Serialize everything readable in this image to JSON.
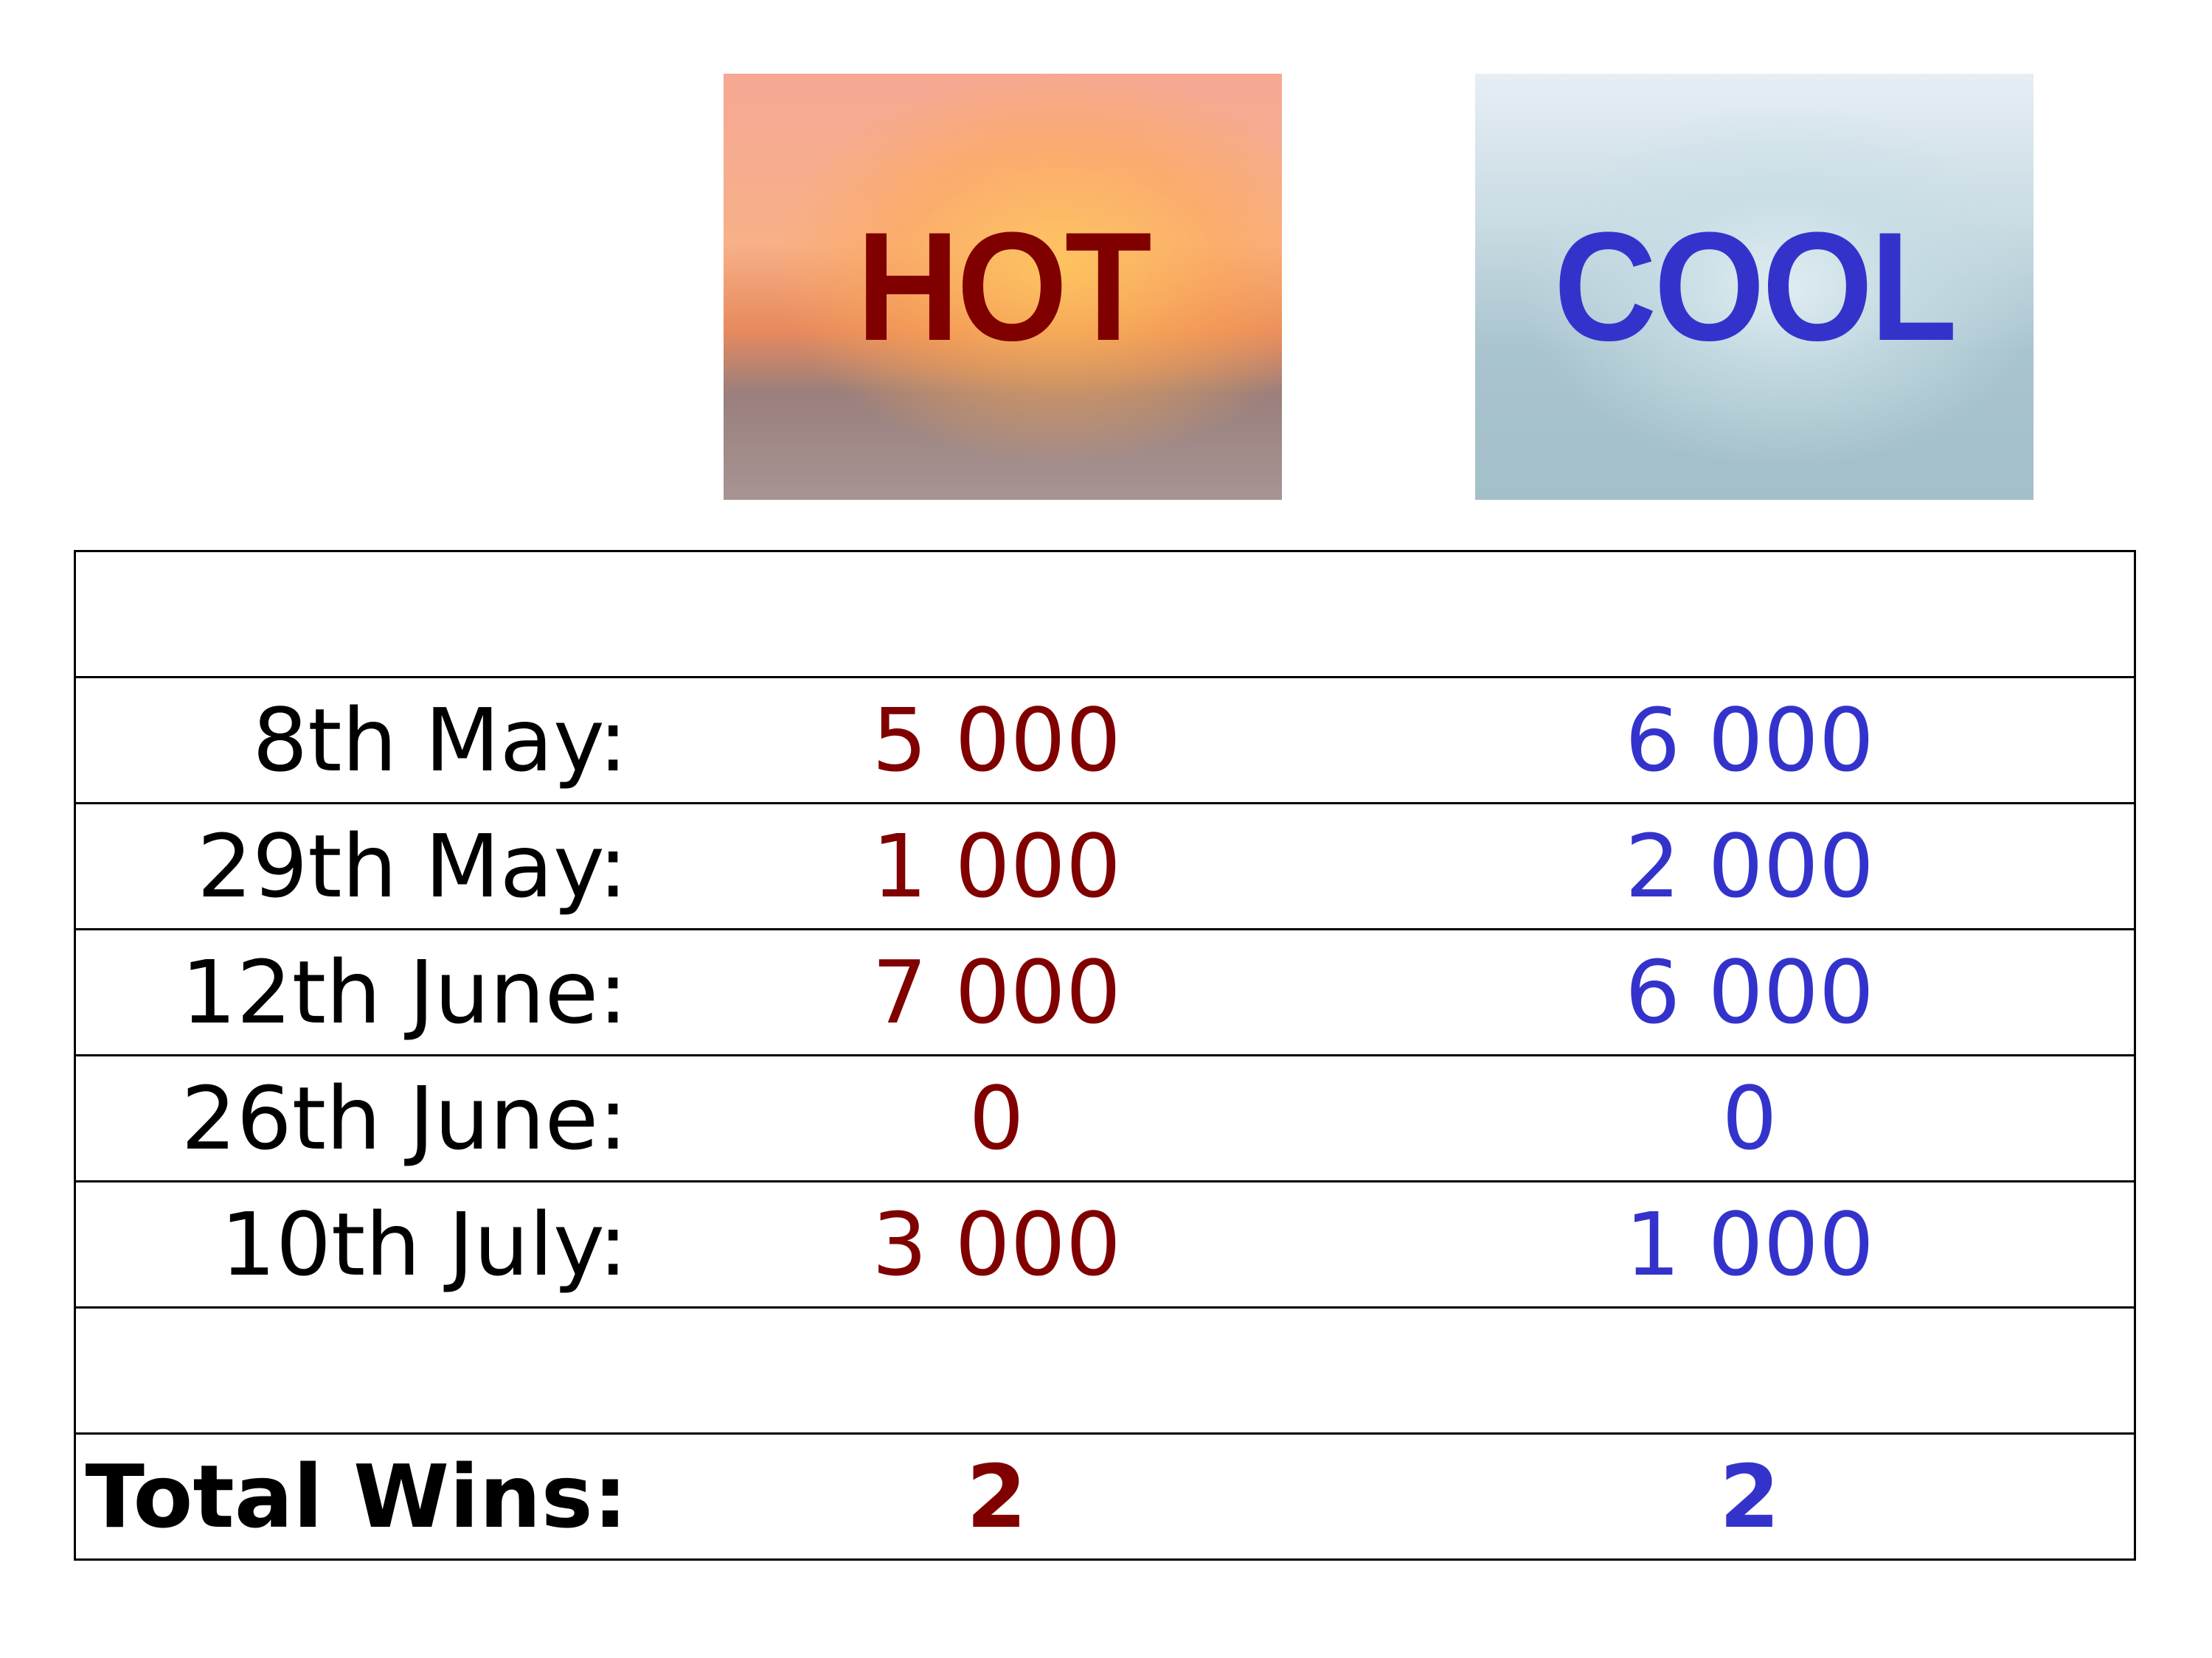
{
  "header": {
    "hot_label": "HOT",
    "cool_label": "COOL"
  },
  "colors": {
    "hot": "#800000",
    "cool": "#3333cc"
  },
  "rows": [
    {
      "date": "8th May:",
      "hot": "5 000",
      "cool": "6 000"
    },
    {
      "date": "29th May:",
      "hot": "1 000",
      "cool": "2 000"
    },
    {
      "date": "12th June:",
      "hot": "7 000",
      "cool": "6 000"
    },
    {
      "date": "26th June:",
      "hot": "0",
      "cool": "0"
    },
    {
      "date": "10th July:",
      "hot": "3 000",
      "cool": "1 000"
    }
  ],
  "total": {
    "label": "Total Wins:",
    "hot": "2",
    "cool": "2"
  }
}
